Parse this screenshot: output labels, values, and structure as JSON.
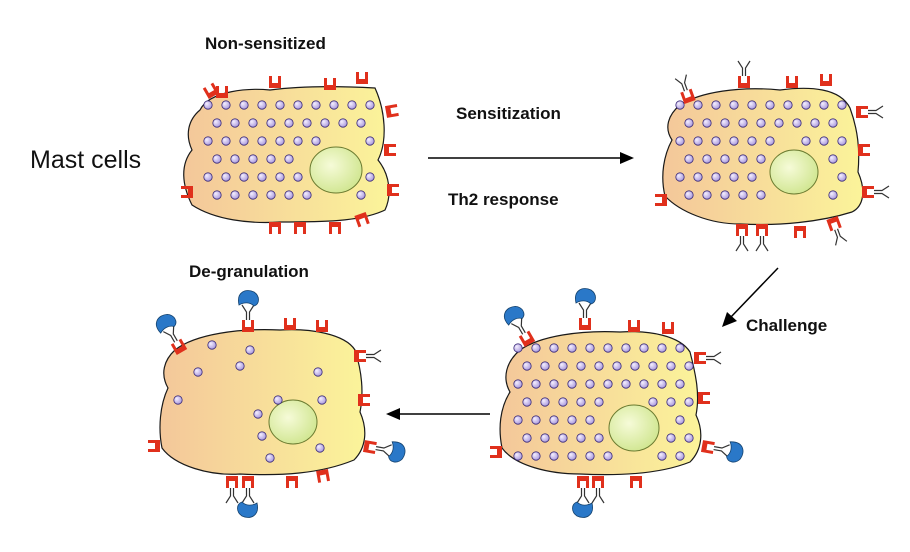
{
  "labels": {
    "mast_cells": "Mast cells",
    "non_sensitized": "Non-sensitized",
    "sensitization": "Sensitization",
    "th2_response": "Th2 response",
    "challenge": "Challenge",
    "degranulation": "De-granulation"
  },
  "colors": {
    "cell_fill_light": "#fbf49a",
    "cell_fill_warm": "#f4c79a",
    "cell_outline": "#1a1a1a",
    "nucleus_fill": "#dff0a8",
    "nucleus_outline": "#6a7a30",
    "granule_fill": "#c8b8ee",
    "granule_outline": "#3a2a7a",
    "receptor": "#e0301c",
    "antibody": "#333333",
    "allergen": "#2a78c8",
    "arrow": "#000000"
  },
  "icons": {
    "receptor": "fc-epsilon-receptor-icon",
    "antibody": "ige-antibody-icon",
    "allergen": "allergen-icon",
    "granule": "granule-icon"
  }
}
